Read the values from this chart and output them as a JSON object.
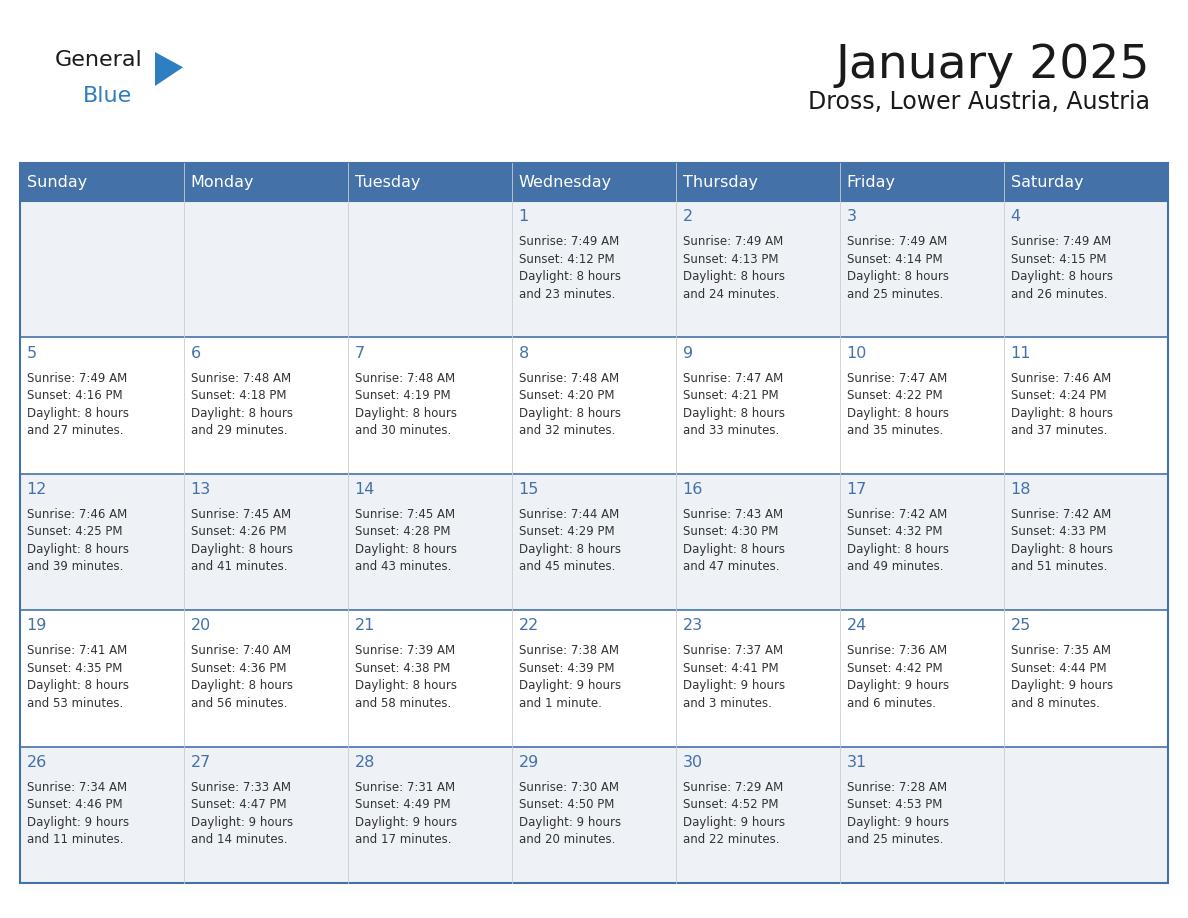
{
  "title": "January 2025",
  "subtitle": "Dross, Lower Austria, Austria",
  "header_color": "#4472a8",
  "header_text_color": "#ffffff",
  "cell_bg_light": "#eef2f7",
  "cell_bg_white": "#ffffff",
  "row_divider_color": "#4472a8",
  "col_divider_color": "#cccccc",
  "day_num_color": "#4472a8",
  "info_text_color": "#333333",
  "day_headers": [
    "Sunday",
    "Monday",
    "Tuesday",
    "Wednesday",
    "Thursday",
    "Friday",
    "Saturday"
  ],
  "weeks": [
    [
      {
        "day": "",
        "info": ""
      },
      {
        "day": "",
        "info": ""
      },
      {
        "day": "",
        "info": ""
      },
      {
        "day": "1",
        "info": "Sunrise: 7:49 AM\nSunset: 4:12 PM\nDaylight: 8 hours\nand 23 minutes."
      },
      {
        "day": "2",
        "info": "Sunrise: 7:49 AM\nSunset: 4:13 PM\nDaylight: 8 hours\nand 24 minutes."
      },
      {
        "day": "3",
        "info": "Sunrise: 7:49 AM\nSunset: 4:14 PM\nDaylight: 8 hours\nand 25 minutes."
      },
      {
        "day": "4",
        "info": "Sunrise: 7:49 AM\nSunset: 4:15 PM\nDaylight: 8 hours\nand 26 minutes."
      }
    ],
    [
      {
        "day": "5",
        "info": "Sunrise: 7:49 AM\nSunset: 4:16 PM\nDaylight: 8 hours\nand 27 minutes."
      },
      {
        "day": "6",
        "info": "Sunrise: 7:48 AM\nSunset: 4:18 PM\nDaylight: 8 hours\nand 29 minutes."
      },
      {
        "day": "7",
        "info": "Sunrise: 7:48 AM\nSunset: 4:19 PM\nDaylight: 8 hours\nand 30 minutes."
      },
      {
        "day": "8",
        "info": "Sunrise: 7:48 AM\nSunset: 4:20 PM\nDaylight: 8 hours\nand 32 minutes."
      },
      {
        "day": "9",
        "info": "Sunrise: 7:47 AM\nSunset: 4:21 PM\nDaylight: 8 hours\nand 33 minutes."
      },
      {
        "day": "10",
        "info": "Sunrise: 7:47 AM\nSunset: 4:22 PM\nDaylight: 8 hours\nand 35 minutes."
      },
      {
        "day": "11",
        "info": "Sunrise: 7:46 AM\nSunset: 4:24 PM\nDaylight: 8 hours\nand 37 minutes."
      }
    ],
    [
      {
        "day": "12",
        "info": "Sunrise: 7:46 AM\nSunset: 4:25 PM\nDaylight: 8 hours\nand 39 minutes."
      },
      {
        "day": "13",
        "info": "Sunrise: 7:45 AM\nSunset: 4:26 PM\nDaylight: 8 hours\nand 41 minutes."
      },
      {
        "day": "14",
        "info": "Sunrise: 7:45 AM\nSunset: 4:28 PM\nDaylight: 8 hours\nand 43 minutes."
      },
      {
        "day": "15",
        "info": "Sunrise: 7:44 AM\nSunset: 4:29 PM\nDaylight: 8 hours\nand 45 minutes."
      },
      {
        "day": "16",
        "info": "Sunrise: 7:43 AM\nSunset: 4:30 PM\nDaylight: 8 hours\nand 47 minutes."
      },
      {
        "day": "17",
        "info": "Sunrise: 7:42 AM\nSunset: 4:32 PM\nDaylight: 8 hours\nand 49 minutes."
      },
      {
        "day": "18",
        "info": "Sunrise: 7:42 AM\nSunset: 4:33 PM\nDaylight: 8 hours\nand 51 minutes."
      }
    ],
    [
      {
        "day": "19",
        "info": "Sunrise: 7:41 AM\nSunset: 4:35 PM\nDaylight: 8 hours\nand 53 minutes."
      },
      {
        "day": "20",
        "info": "Sunrise: 7:40 AM\nSunset: 4:36 PM\nDaylight: 8 hours\nand 56 minutes."
      },
      {
        "day": "21",
        "info": "Sunrise: 7:39 AM\nSunset: 4:38 PM\nDaylight: 8 hours\nand 58 minutes."
      },
      {
        "day": "22",
        "info": "Sunrise: 7:38 AM\nSunset: 4:39 PM\nDaylight: 9 hours\nand 1 minute."
      },
      {
        "day": "23",
        "info": "Sunrise: 7:37 AM\nSunset: 4:41 PM\nDaylight: 9 hours\nand 3 minutes."
      },
      {
        "day": "24",
        "info": "Sunrise: 7:36 AM\nSunset: 4:42 PM\nDaylight: 9 hours\nand 6 minutes."
      },
      {
        "day": "25",
        "info": "Sunrise: 7:35 AM\nSunset: 4:44 PM\nDaylight: 9 hours\nand 8 minutes."
      }
    ],
    [
      {
        "day": "26",
        "info": "Sunrise: 7:34 AM\nSunset: 4:46 PM\nDaylight: 9 hours\nand 11 minutes."
      },
      {
        "day": "27",
        "info": "Sunrise: 7:33 AM\nSunset: 4:47 PM\nDaylight: 9 hours\nand 14 minutes."
      },
      {
        "day": "28",
        "info": "Sunrise: 7:31 AM\nSunset: 4:49 PM\nDaylight: 9 hours\nand 17 minutes."
      },
      {
        "day": "29",
        "info": "Sunrise: 7:30 AM\nSunset: 4:50 PM\nDaylight: 9 hours\nand 20 minutes."
      },
      {
        "day": "30",
        "info": "Sunrise: 7:29 AM\nSunset: 4:52 PM\nDaylight: 9 hours\nand 22 minutes."
      },
      {
        "day": "31",
        "info": "Sunrise: 7:28 AM\nSunset: 4:53 PM\nDaylight: 9 hours\nand 25 minutes."
      },
      {
        "day": "",
        "info": ""
      }
    ]
  ],
  "logo_general_color": "#1a1a1a",
  "logo_blue_color": "#2e7fc2",
  "logo_triangle_color": "#2e7fc2"
}
